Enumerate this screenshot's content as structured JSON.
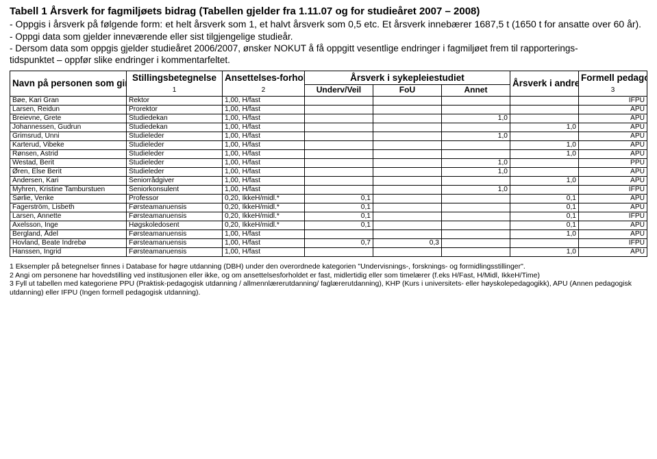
{
  "header": {
    "title": "Tabell 1  Årsverk for fagmiljøets bidrag (Tabellen gjelder fra 1.11.07 og for studieåret 2007 – 2008)",
    "subtitle": "- Oppgis i årsverk på følgende form: et helt årsverk som 1, et halvt årsverk som 0,5 etc. Et årsverk innebærer 1687,5 t (1650 t for ansatte over 60 år).",
    "note2": "- Oppgi data som gjelder inneværende eller sist tilgjengelige studieår.",
    "note3": "- Dersom data som oppgis gjelder studieåret 2006/2007, ønsker NOKUT å få oppgitt vesentlige endringer i fagmiljøet frem til rapporterings-",
    "note3b": "tidspunktet – oppfør slike endringer i kommentarfeltet."
  },
  "columns": {
    "c1": "Navn på personen som gir faglig innsats",
    "c2": "Stillingsbetegnelse",
    "c2sup": "1",
    "c3": "Ansettelses-forhold",
    "c3sup": "2",
    "c4": "Årsverk i sykepleiestudiet",
    "c4a": "Underv/Veil",
    "c4b": "FoU",
    "c4c": "Annet",
    "c5": "Årsverk i andre studietilbud",
    "c6": "Formell pedagogisk kompetanse",
    "c6sup": "3"
  },
  "rows": [
    {
      "name": "Bøe, Kari Gran",
      "pos": "Rektor",
      "emp": "1,00, H/fast",
      "uv": "",
      "fou": "",
      "ann": "",
      "andre": "",
      "form": "IFPU"
    },
    {
      "name": "Larsen, Reidun",
      "pos": "Prorektor",
      "emp": "1,00, H/fast",
      "uv": "",
      "fou": "",
      "ann": "",
      "andre": "",
      "form": "APU"
    },
    {
      "name": "Breievne, Grete",
      "pos": "Studiedekan",
      "emp": "1,00, H/fast",
      "uv": "",
      "fou": "",
      "ann": "1,0",
      "andre": "",
      "form": "APU"
    },
    {
      "name": "Johannessen, Gudrun",
      "pos": "Studiedekan",
      "emp": "1,00, H/fast",
      "uv": "",
      "fou": "",
      "ann": "",
      "andre": "1,0",
      "form": "APU"
    },
    {
      "name": "Grimsrud, Unni",
      "pos": "Studieleder",
      "emp": "1,00, H/fast",
      "uv": "",
      "fou": "",
      "ann": "1,0",
      "andre": "",
      "form": "APU"
    },
    {
      "name": "Karterud, Vibeke",
      "pos": "Studieleder",
      "emp": "1,00, H/fast",
      "uv": "",
      "fou": "",
      "ann": "",
      "andre": "1,0",
      "form": "APU"
    },
    {
      "name": "Rønsen, Astrid",
      "pos": "Studieleder",
      "emp": "1,00, H/fast",
      "uv": "",
      "fou": "",
      "ann": "",
      "andre": "1,0",
      "form": "APU"
    },
    {
      "name": "Westad, Berit",
      "pos": "Studieleder",
      "emp": "1,00, H/fast",
      "uv": "",
      "fou": "",
      "ann": "1,0",
      "andre": "",
      "form": "PPU"
    },
    {
      "name": "Øren, Else Berit",
      "pos": "Studieleder",
      "emp": "1,00, H/fast",
      "uv": "",
      "fou": "",
      "ann": "1,0",
      "andre": "",
      "form": "APU"
    },
    {
      "name": "Andersen, Kari",
      "pos": "Seniorrådgiver",
      "emp": "1,00, H/fast",
      "uv": "",
      "fou": "",
      "ann": "",
      "andre": "1,0",
      "form": "APU"
    },
    {
      "name": "Myhren, Kristine Tamburstuen",
      "pos": "Seniorkonsulent",
      "emp": "1,00, H/fast",
      "uv": "",
      "fou": "",
      "ann": "1,0",
      "andre": "",
      "form": "IFPU"
    },
    {
      "name": "Sørlie, Venke",
      "pos": "Professor",
      "emp": "0,20, IkkeH/midl.*",
      "uv": "0,1",
      "fou": "",
      "ann": "",
      "andre": "0,1",
      "form": "APU"
    },
    {
      "name": "Fagerström, Lisbeth",
      "pos": "Førsteamanuensis",
      "emp": "0,20, IkkeH/midl.*",
      "uv": "0,1",
      "fou": "",
      "ann": "",
      "andre": "0,1",
      "form": "APU"
    },
    {
      "name": "Larsen, Annette",
      "pos": "Førsteamanuensis",
      "emp": "0,20, IkkeH/midl.*",
      "uv": "0,1",
      "fou": "",
      "ann": "",
      "andre": "0,1",
      "form": "IFPU"
    },
    {
      "name": "Axelsson, Inge",
      "pos": "Høgskoledosent",
      "emp": "0,20, IkkeH/midl.*",
      "uv": "0,1",
      "fou": "",
      "ann": "",
      "andre": "0,1",
      "form": "APU"
    },
    {
      "name": "Bergland, Ådel",
      "pos": "Førsteamanuensis",
      "emp": "1,00, H/fast",
      "uv": "",
      "fou": "",
      "ann": "",
      "andre": "1,0",
      "form": "APU"
    },
    {
      "name": "Hovland, Beate Indrebø",
      "pos": "Førsteamanuensis",
      "emp": "1,00, H/fast",
      "uv": "0,7",
      "fou": "0,3",
      "ann": "",
      "andre": "",
      "form": "IFPU"
    },
    {
      "name": "Hanssen, Ingrid",
      "pos": "Førsteamanuensis",
      "emp": "1,00, H/fast",
      "uv": "",
      "fou": "",
      "ann": "",
      "andre": "1,0",
      "form": "APU"
    }
  ],
  "footnotes": {
    "f1": "1 Eksempler på betegnelser finnes i Database for høgre utdanning (DBH) under den overordnede kategorien \"Undervisnings-, forsknings- og formidlingsstillinger\".",
    "f2": "2 Angi om personene har hovedstilling ved institusjonen eller ikke, og om ansettelsesforholdet er fast, midlertidig eller som timelærer (f.eks H/Fast, H/Midl, IkkeH/Time)",
    "f3": "3 Fyll ut tabellen med kategoriene PPU (Praktisk-pedagogisk utdanning / allmennlærerutdanning/ faglærerutdanning), KHP (Kurs i universitets- eller høyskolepedagogikk), APU (Annen pedagogisk utdanning) eller IFPU (Ingen formell pedagogisk utdanning)."
  }
}
